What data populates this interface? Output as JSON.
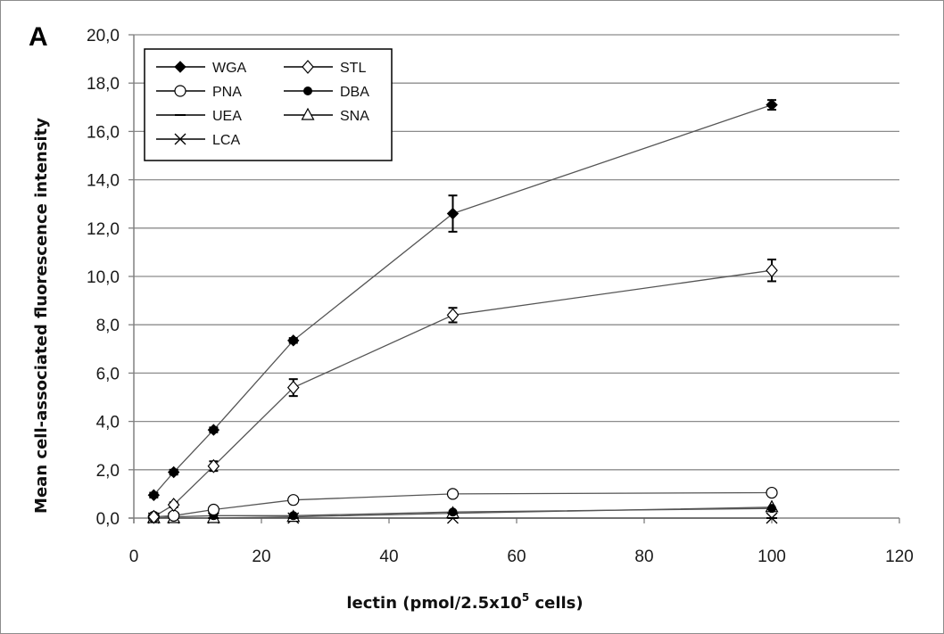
{
  "chart_data": {
    "type": "line",
    "panel_label": "A",
    "xlabel": "lectin (pmol/2.5x10",
    "xlabel_superscript": "5",
    "xlabel_suffix": " cells)",
    "ylabel": "Mean cell-associated fluorescence intensity",
    "xlim": [
      0,
      120
    ],
    "ylim": [
      0,
      20
    ],
    "x_ticks": [
      0,
      20,
      40,
      60,
      80,
      100,
      120
    ],
    "y_ticks": [
      0,
      2,
      4,
      6,
      8,
      10,
      12,
      14,
      16,
      18,
      20
    ],
    "x_tick_labels": [
      "0",
      "20",
      "40",
      "60",
      "80",
      "100",
      "120"
    ],
    "y_tick_labels": [
      "0,0",
      "2,0",
      "4,0",
      "6,0",
      "8,0",
      "10,0",
      "12,0",
      "14,0",
      "16,0",
      "18,0",
      "20,0"
    ],
    "grid": "horizontal",
    "legend_position": "top-left",
    "colors": {
      "series": "#000000",
      "connector": "#555555",
      "grid": "#8c8c8c",
      "axis": "#808080"
    },
    "x": [
      3.125,
      6.25,
      12.5,
      25,
      50,
      100
    ],
    "series": [
      {
        "name": "WGA",
        "marker": "filled-diamond",
        "values": [
          0.95,
          1.9,
          3.65,
          7.35,
          12.6,
          17.1
        ],
        "errors": [
          0.1,
          0.1,
          0.1,
          0.1,
          0.75,
          0.2
        ]
      },
      {
        "name": "STL",
        "marker": "open-diamond",
        "values": [
          0.05,
          0.55,
          2.15,
          5.4,
          8.4,
          10.25
        ],
        "errors": [
          0.05,
          0.1,
          0.2,
          0.35,
          0.3,
          0.45
        ]
      },
      {
        "name": "PNA",
        "marker": "open-circle",
        "values": [
          0.05,
          0.1,
          0.35,
          0.75,
          1.0,
          1.05
        ],
        "errors": [
          0,
          0,
          0,
          0,
          0,
          0
        ]
      },
      {
        "name": "DBA",
        "marker": "filled-circle",
        "values": [
          0.0,
          0.05,
          0.1,
          0.1,
          0.25,
          0.4
        ],
        "errors": [
          0,
          0,
          0,
          0,
          0,
          0
        ]
      },
      {
        "name": "UEA",
        "marker": "dash",
        "values": [
          0.0,
          0.0,
          0.0,
          0.0,
          0.0,
          0.0
        ],
        "errors": [
          0,
          0,
          0,
          0,
          0,
          0
        ]
      },
      {
        "name": "SNA",
        "marker": "open-triangle",
        "values": [
          0.0,
          0.0,
          0.0,
          0.05,
          0.2,
          0.45
        ],
        "errors": [
          0,
          0,
          0,
          0,
          0,
          0
        ]
      },
      {
        "name": "LCA",
        "marker": "x",
        "values": [
          0.0,
          0.0,
          0.0,
          0.0,
          0.0,
          0.0
        ],
        "errors": [
          0,
          0,
          0,
          0,
          0,
          0
        ]
      }
    ],
    "legend_order": [
      "WGA",
      "STL",
      "PNA",
      "DBA",
      "UEA",
      "SNA",
      "LCA"
    ]
  }
}
